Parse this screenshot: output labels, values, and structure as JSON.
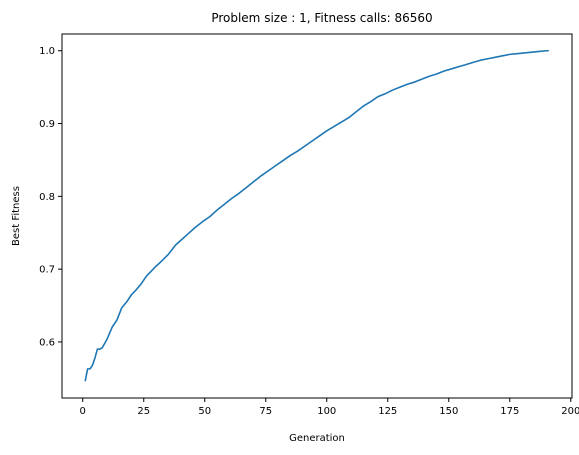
{
  "chart_data": {
    "type": "line",
    "title": "Problem size : 1, Fitness calls: 86560",
    "xlabel": "Generation",
    "ylabel": "Best Fitness",
    "xlim": [
      -8.5,
      200.5
    ],
    "ylim": [
      0.523,
      1.023
    ],
    "xticks": [
      0,
      25,
      50,
      75,
      100,
      125,
      150,
      175,
      200
    ],
    "yticks": [
      0.6,
      0.7,
      0.8,
      0.9,
      1.0
    ],
    "ytick_labels": [
      "0.6",
      "0.7",
      "0.8",
      "0.9",
      "1.0"
    ],
    "grid": false,
    "color": "#1f77b4",
    "series": [
      {
        "x": [
          1,
          2,
          3,
          4,
          5,
          6,
          7,
          8,
          10,
          12,
          14,
          16,
          18,
          20,
          22,
          24,
          26,
          28,
          30,
          32,
          35,
          38,
          40,
          43,
          46,
          49,
          52,
          55,
          58,
          61,
          64,
          67,
          70,
          73,
          76,
          79,
          82,
          85,
          88,
          91,
          94,
          97,
          100,
          103,
          106,
          109,
          112,
          115,
          118,
          121,
          124,
          127,
          130,
          133,
          136,
          139,
          142,
          145,
          148,
          151,
          154,
          157,
          160,
          163,
          166,
          169,
          172,
          175,
          178,
          181,
          184,
          187,
          190,
          191
        ],
        "y": [
          0.546,
          0.563,
          0.563,
          0.568,
          0.578,
          0.59,
          0.59,
          0.592,
          0.604,
          0.62,
          0.63,
          0.647,
          0.655,
          0.665,
          0.672,
          0.68,
          0.69,
          0.697,
          0.704,
          0.71,
          0.72,
          0.733,
          0.739,
          0.748,
          0.757,
          0.765,
          0.772,
          0.781,
          0.789,
          0.797,
          0.804,
          0.812,
          0.82,
          0.828,
          0.835,
          0.842,
          0.849,
          0.856,
          0.862,
          0.869,
          0.876,
          0.883,
          0.89,
          0.896,
          0.902,
          0.908,
          0.916,
          0.924,
          0.93,
          0.937,
          0.941,
          0.946,
          0.95,
          0.954,
          0.957,
          0.961,
          0.965,
          0.968,
          0.972,
          0.975,
          0.978,
          0.981,
          0.984,
          0.987,
          0.989,
          0.991,
          0.993,
          0.995,
          0.996,
          0.997,
          0.998,
          0.999,
          1.0,
          1.0
        ]
      }
    ]
  }
}
